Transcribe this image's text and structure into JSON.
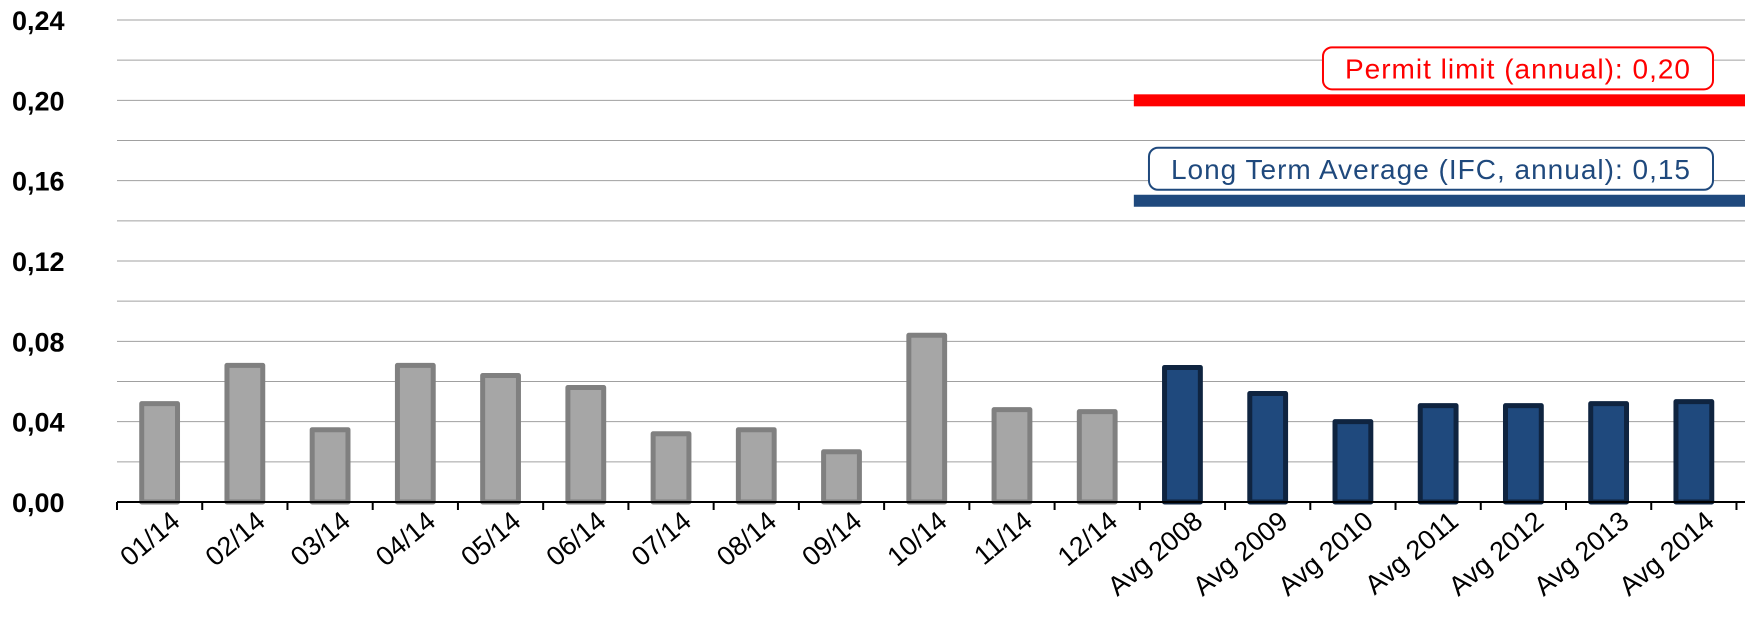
{
  "chart_data": {
    "type": "bar",
    "title": "",
    "xlabel": "",
    "ylabel": "",
    "ylim": [
      0,
      0.24
    ],
    "yticks": [
      "0,00",
      "0,04",
      "0,08",
      "0,12",
      "0,16",
      "0,20",
      "0,24"
    ],
    "grid": true,
    "categories": [
      "01/14",
      "02/14",
      "03/14",
      "04/14",
      "05/14",
      "06/14",
      "07/14",
      "08/14",
      "09/14",
      "10/14",
      "11/14",
      "12/14",
      "Avg 2008",
      "Avg 2009",
      "Avg 2010",
      "Avg 2011",
      "Avg 2012",
      "Avg 2013",
      "Avg 2014"
    ],
    "values": [
      0.049,
      0.068,
      0.036,
      0.068,
      0.063,
      0.057,
      0.034,
      0.036,
      0.025,
      0.083,
      0.046,
      0.045,
      0.067,
      0.054,
      0.04,
      0.048,
      0.048,
      0.049,
      0.05
    ],
    "bar_colors": {
      "monthly": "#a6a6a6",
      "monthly_edge": "#808080",
      "annual_avg": "#1f497d",
      "annual_avg_edge": "#0f2440"
    },
    "reference_lines": [
      {
        "label": "Permit limit (annual): 0,20",
        "value": 0.2,
        "color": "#ff0000",
        "from_category": 12
      },
      {
        "label": "Long Term Average (IFC, annual): 0,15",
        "value": 0.15,
        "color": "#1f497d",
        "from_category": 12
      }
    ]
  }
}
